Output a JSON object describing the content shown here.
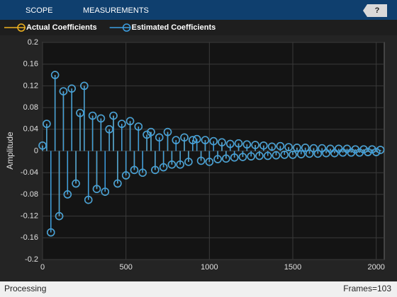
{
  "toolbar": {
    "tabs": [
      "SCOPE",
      "MEASUREMENTS"
    ],
    "help": "?"
  },
  "status": {
    "left": "Processing",
    "right": "Frames=103"
  },
  "chart_data": {
    "type": "stem",
    "ylabel": "Amplitude",
    "x": [
      0,
      25,
      50,
      75,
      100,
      125,
      150,
      175,
      200,
      225,
      250,
      275,
      300,
      325,
      350,
      375,
      400,
      425,
      450,
      475,
      500,
      525,
      550,
      575,
      600,
      625,
      650,
      675,
      700,
      725,
      750,
      775,
      800,
      825,
      850,
      875,
      900,
      925,
      950,
      975,
      1000,
      1025,
      1050,
      1075,
      1100,
      1125,
      1150,
      1175,
      1200,
      1225,
      1250,
      1275,
      1300,
      1325,
      1350,
      1375,
      1400,
      1425,
      1450,
      1475,
      1500,
      1525,
      1550,
      1575,
      1600,
      1625,
      1650,
      1675,
      1700,
      1725,
      1750,
      1775,
      1800,
      1825,
      1850,
      1875,
      1900,
      1925,
      1950,
      1975,
      2000,
      2025
    ],
    "series": [
      {
        "name": "Actual Coefficients",
        "color": "#edb120",
        "values": [
          0.01,
          0.05,
          -0.15,
          0.14,
          -0.12,
          0.11,
          -0.08,
          0.115,
          -0.06,
          0.07,
          0.12,
          -0.09,
          0.065,
          -0.07,
          0.06,
          -0.075,
          0.04,
          0.065,
          -0.06,
          0.05,
          -0.045,
          0.055,
          -0.035,
          0.045,
          -0.04,
          0.03,
          0.035,
          -0.035,
          0.025,
          -0.03,
          0.035,
          -0.025,
          0.02,
          -0.025,
          0.025,
          -0.02,
          0.02,
          0.022,
          -0.018,
          0.02,
          -0.02,
          0.018,
          -0.015,
          0.016,
          -0.014,
          0.013,
          -0.012,
          0.014,
          -0.011,
          0.012,
          -0.01,
          0.011,
          -0.009,
          0.01,
          -0.009,
          0.008,
          -0.008,
          0.009,
          -0.007,
          0.007,
          -0.007,
          0.006,
          -0.006,
          0.006,
          -0.005,
          0.005,
          -0.005,
          0.005,
          -0.004,
          0.004,
          -0.004,
          0.004,
          -0.003,
          0.004,
          -0.003,
          0.003,
          -0.003,
          0.003,
          -0.002,
          0.003,
          -0.002,
          0.002
        ]
      },
      {
        "name": "Estimated Coefficients",
        "color": "#3d9ee0",
        "values": [
          0.01,
          0.05,
          -0.15,
          0.14,
          -0.12,
          0.11,
          -0.08,
          0.115,
          -0.06,
          0.07,
          0.12,
          -0.09,
          0.065,
          -0.07,
          0.06,
          -0.075,
          0.04,
          0.065,
          -0.06,
          0.05,
          -0.045,
          0.055,
          -0.035,
          0.045,
          -0.04,
          0.03,
          0.035,
          -0.035,
          0.025,
          -0.03,
          0.035,
          -0.025,
          0.02,
          -0.025,
          0.025,
          -0.02,
          0.02,
          0.022,
          -0.018,
          0.02,
          -0.02,
          0.018,
          -0.015,
          0.016,
          -0.014,
          0.013,
          -0.012,
          0.014,
          -0.011,
          0.012,
          -0.01,
          0.011,
          -0.009,
          0.01,
          -0.009,
          0.008,
          -0.008,
          0.009,
          -0.007,
          0.007,
          -0.007,
          0.006,
          -0.006,
          0.006,
          -0.005,
          0.005,
          -0.005,
          0.005,
          -0.004,
          0.004,
          -0.004,
          0.004,
          -0.003,
          0.004,
          -0.003,
          0.003,
          -0.003,
          0.003,
          -0.002,
          0.003,
          -0.002,
          0.002
        ]
      }
    ],
    "xlim": [
      0,
      2048
    ],
    "ylim": [
      -0.2,
      0.2
    ],
    "xticks": [
      0,
      500,
      1000,
      1500,
      2000
    ],
    "yticks": [
      0.2,
      0.16,
      0.12,
      0.08,
      0.04,
      0,
      -0.04,
      -0.08,
      -0.12,
      -0.16,
      -0.2
    ],
    "grid": true
  }
}
